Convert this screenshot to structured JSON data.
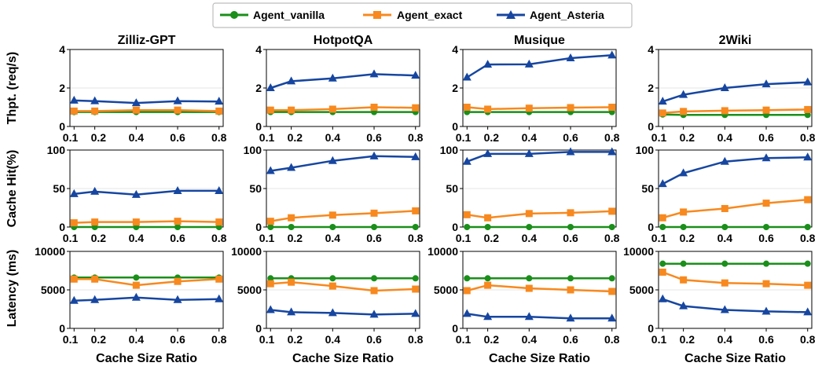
{
  "legend": [
    {
      "name": "Agent_vanilla",
      "color": "#1a8f1a",
      "marker": "circle"
    },
    {
      "name": "Agent_exact",
      "color": "#f7891f",
      "marker": "square"
    },
    {
      "name": "Agent_Asteria",
      "color": "#1646a0",
      "marker": "triangle"
    }
  ],
  "row_labels": [
    "Thpt. (req/s)",
    "Cache Hit(%)",
    "Latency (ms)"
  ],
  "xlabel": "Cache Size Ratio",
  "x_tick_labels": [
    "0.1",
    "0.2",
    "0.4",
    "0.6",
    "0.8"
  ],
  "chart_data": [
    {
      "type": "line",
      "title": "Zilliz-GPT",
      "ylabel": "Thpt. (req/s)",
      "xlabel": "",
      "x": [
        0.1,
        0.2,
        0.4,
        0.6,
        0.8
      ],
      "ylim": [
        0,
        4
      ],
      "yticks": [
        0,
        2,
        4
      ],
      "grid": "horizontal",
      "series": [
        {
          "name": "Agent_vanilla",
          "values": [
            0.75,
            0.75,
            0.75,
            0.75,
            0.75
          ]
        },
        {
          "name": "Agent_exact",
          "values": [
            0.8,
            0.8,
            0.85,
            0.85,
            0.8
          ]
        },
        {
          "name": "Agent_Asteria",
          "values": [
            1.35,
            1.32,
            1.22,
            1.32,
            1.3
          ]
        }
      ]
    },
    {
      "type": "line",
      "title": "HotpotQA",
      "ylabel": "",
      "xlabel": "",
      "x": [
        0.1,
        0.2,
        0.4,
        0.6,
        0.8
      ],
      "ylim": [
        0,
        4
      ],
      "yticks": [
        0,
        2,
        4
      ],
      "grid": "horizontal",
      "series": [
        {
          "name": "Agent_vanilla",
          "values": [
            0.75,
            0.75,
            0.75,
            0.75,
            0.75
          ]
        },
        {
          "name": "Agent_exact",
          "values": [
            0.85,
            0.85,
            0.9,
            1.0,
            0.97
          ]
        },
        {
          "name": "Agent_Asteria",
          "values": [
            2.0,
            2.35,
            2.5,
            2.72,
            2.65
          ]
        }
      ]
    },
    {
      "type": "line",
      "title": "Musique",
      "ylabel": "",
      "xlabel": "",
      "x": [
        0.1,
        0.2,
        0.4,
        0.6,
        0.8
      ],
      "ylim": [
        0,
        4
      ],
      "yticks": [
        0,
        2,
        4
      ],
      "grid": "horizontal",
      "series": [
        {
          "name": "Agent_vanilla",
          "values": [
            0.75,
            0.75,
            0.75,
            0.75,
            0.75
          ]
        },
        {
          "name": "Agent_exact",
          "values": [
            1.0,
            0.9,
            0.95,
            0.98,
            1.0
          ]
        },
        {
          "name": "Agent_Asteria",
          "values": [
            2.55,
            3.22,
            3.23,
            3.55,
            3.7
          ]
        }
      ]
    },
    {
      "type": "line",
      "title": "2Wiki",
      "ylabel": "",
      "xlabel": "",
      "x": [
        0.1,
        0.2,
        0.4,
        0.6,
        0.8
      ],
      "ylim": [
        0,
        4
      ],
      "yticks": [
        0,
        2,
        4
      ],
      "grid": "horizontal",
      "series": [
        {
          "name": "Agent_vanilla",
          "values": [
            0.62,
            0.6,
            0.6,
            0.6,
            0.6
          ]
        },
        {
          "name": "Agent_exact",
          "values": [
            0.7,
            0.78,
            0.82,
            0.85,
            0.88
          ]
        },
        {
          "name": "Agent_Asteria",
          "values": [
            1.3,
            1.65,
            2.0,
            2.2,
            2.3
          ]
        }
      ]
    },
    {
      "type": "line",
      "title": "",
      "ylabel": "Cache Hit(%)",
      "xlabel": "",
      "x": [
        0.1,
        0.2,
        0.4,
        0.6,
        0.8
      ],
      "ylim": [
        0,
        100
      ],
      "yticks": [
        0,
        50,
        100
      ],
      "grid": "horizontal",
      "series": [
        {
          "name": "Agent_vanilla",
          "values": [
            0,
            0,
            0,
            0,
            0
          ]
        },
        {
          "name": "Agent_exact",
          "values": [
            5.5,
            6.5,
            6.5,
            7.5,
            6.5
          ]
        },
        {
          "name": "Agent_Asteria",
          "values": [
            43,
            46,
            42,
            47,
            47
          ]
        }
      ]
    },
    {
      "type": "line",
      "title": "",
      "ylabel": "",
      "xlabel": "",
      "x": [
        0.1,
        0.2,
        0.4,
        0.6,
        0.8
      ],
      "ylim": [
        0,
        100
      ],
      "yticks": [
        0,
        50,
        100
      ],
      "grid": "horizontal",
      "series": [
        {
          "name": "Agent_vanilla",
          "values": [
            0,
            0,
            0,
            0,
            0
          ]
        },
        {
          "name": "Agent_exact",
          "values": [
            7.5,
            12,
            15.5,
            18,
            21
          ]
        },
        {
          "name": "Agent_Asteria",
          "values": [
            73,
            77,
            86,
            92,
            91
          ]
        }
      ]
    },
    {
      "type": "line",
      "title": "",
      "ylabel": "",
      "xlabel": "",
      "x": [
        0.1,
        0.2,
        0.4,
        0.6,
        0.8
      ],
      "ylim": [
        0,
        100
      ],
      "yticks": [
        0,
        50,
        100
      ],
      "grid": "horizontal",
      "series": [
        {
          "name": "Agent_vanilla",
          "values": [
            0,
            0,
            0,
            0,
            0
          ]
        },
        {
          "name": "Agent_exact",
          "values": [
            16,
            12,
            17.5,
            18.5,
            20.5
          ]
        },
        {
          "name": "Agent_Asteria",
          "values": [
            85,
            95,
            95,
            97.5,
            97.5
          ]
        }
      ]
    },
    {
      "type": "line",
      "title": "",
      "ylabel": "",
      "xlabel": "",
      "x": [
        0.1,
        0.2,
        0.4,
        0.6,
        0.8
      ],
      "ylim": [
        0,
        100
      ],
      "yticks": [
        0,
        50,
        100
      ],
      "grid": "horizontal",
      "series": [
        {
          "name": "Agent_vanilla",
          "values": [
            0,
            0,
            0,
            0,
            0
          ]
        },
        {
          "name": "Agent_exact",
          "values": [
            12,
            19.5,
            24,
            31,
            35.5
          ]
        },
        {
          "name": "Agent_Asteria",
          "values": [
            56,
            70,
            85,
            89.5,
            90.5
          ]
        }
      ]
    },
    {
      "type": "line",
      "title": "",
      "ylabel": "Latency (ms)",
      "xlabel": "Cache Size Ratio",
      "x": [
        0.1,
        0.2,
        0.4,
        0.6,
        0.8
      ],
      "ylim": [
        0,
        10000
      ],
      "yticks": [
        0,
        5000,
        10000
      ],
      "grid": "horizontal",
      "series": [
        {
          "name": "Agent_vanilla",
          "values": [
            6600,
            6600,
            6600,
            6600,
            6600
          ]
        },
        {
          "name": "Agent_exact",
          "values": [
            6400,
            6400,
            5600,
            6100,
            6400
          ]
        },
        {
          "name": "Agent_Asteria",
          "values": [
            3600,
            3700,
            4000,
            3700,
            3800
          ]
        }
      ]
    },
    {
      "type": "line",
      "title": "",
      "ylabel": "",
      "xlabel": "Cache Size Ratio",
      "x": [
        0.1,
        0.2,
        0.4,
        0.6,
        0.8
      ],
      "ylim": [
        0,
        10000
      ],
      "yticks": [
        0,
        5000,
        10000
      ],
      "grid": "horizontal",
      "series": [
        {
          "name": "Agent_vanilla",
          "values": [
            6500,
            6500,
            6500,
            6500,
            6500
          ]
        },
        {
          "name": "Agent_exact",
          "values": [
            5800,
            6000,
            5500,
            4900,
            5100
          ]
        },
        {
          "name": "Agent_Asteria",
          "values": [
            2400,
            2100,
            2000,
            1800,
            1900
          ]
        }
      ]
    },
    {
      "type": "line",
      "title": "",
      "ylabel": "",
      "xlabel": "Cache Size Ratio",
      "x": [
        0.1,
        0.2,
        0.4,
        0.6,
        0.8
      ],
      "ylim": [
        0,
        10000
      ],
      "yticks": [
        0,
        5000,
        10000
      ],
      "grid": "horizontal",
      "series": [
        {
          "name": "Agent_vanilla",
          "values": [
            6500,
            6500,
            6500,
            6500,
            6500
          ]
        },
        {
          "name": "Agent_exact",
          "values": [
            4900,
            5600,
            5200,
            5000,
            4800
          ]
        },
        {
          "name": "Agent_Asteria",
          "values": [
            1900,
            1500,
            1500,
            1300,
            1300
          ]
        }
      ]
    },
    {
      "type": "line",
      "title": "",
      "ylabel": "",
      "xlabel": "Cache Size Ratio",
      "x": [
        0.1,
        0.2,
        0.4,
        0.6,
        0.8
      ],
      "ylim": [
        0,
        10000
      ],
      "yticks": [
        0,
        5000,
        10000
      ],
      "grid": "horizontal",
      "series": [
        {
          "name": "Agent_vanilla",
          "values": [
            8400,
            8400,
            8400,
            8400,
            8400
          ]
        },
        {
          "name": "Agent_exact",
          "values": [
            7300,
            6300,
            5900,
            5800,
            5600
          ]
        },
        {
          "name": "Agent_Asteria",
          "values": [
            3800,
            2900,
            2400,
            2200,
            2100
          ]
        }
      ]
    }
  ]
}
